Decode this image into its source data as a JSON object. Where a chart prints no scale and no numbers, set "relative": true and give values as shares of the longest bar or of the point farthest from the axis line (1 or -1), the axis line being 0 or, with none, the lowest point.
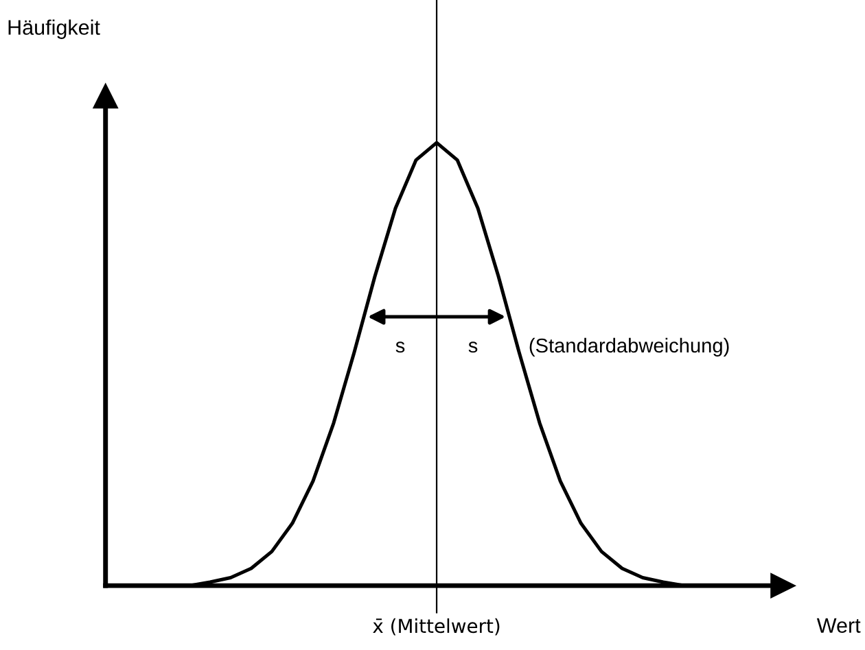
{
  "chart_data": {
    "type": "line",
    "relative": true,
    "categories": [
      null,
      null,
      null,
      null,
      null,
      null,
      null,
      null,
      null,
      null,
      null,
      null,
      null,
      null,
      null,
      null,
      null,
      null,
      null,
      null,
      null,
      null,
      null,
      null,
      null
    ],
    "series": [
      {
        "color": "#000000",
        "values": [
          0,
          0.008,
          0.018,
          0.039,
          0.077,
          0.141,
          0.236,
          0.367,
          0.527,
          0.698,
          0.852,
          0.961,
          1,
          0.961,
          0.852,
          0.698,
          0.527,
          0.367,
          0.236,
          0.141,
          0.077,
          0.039,
          0.018,
          0.008,
          0
        ]
      }
    ],
    "annotations": [
      "Häufigkeit",
      "Wert",
      "s",
      "s",
      "(Standardabweichung)",
      "x̄ (Mittelwert)"
    ],
    "grid": false,
    "legend": false,
    "marker": "none",
    "line_style": "solid"
  }
}
